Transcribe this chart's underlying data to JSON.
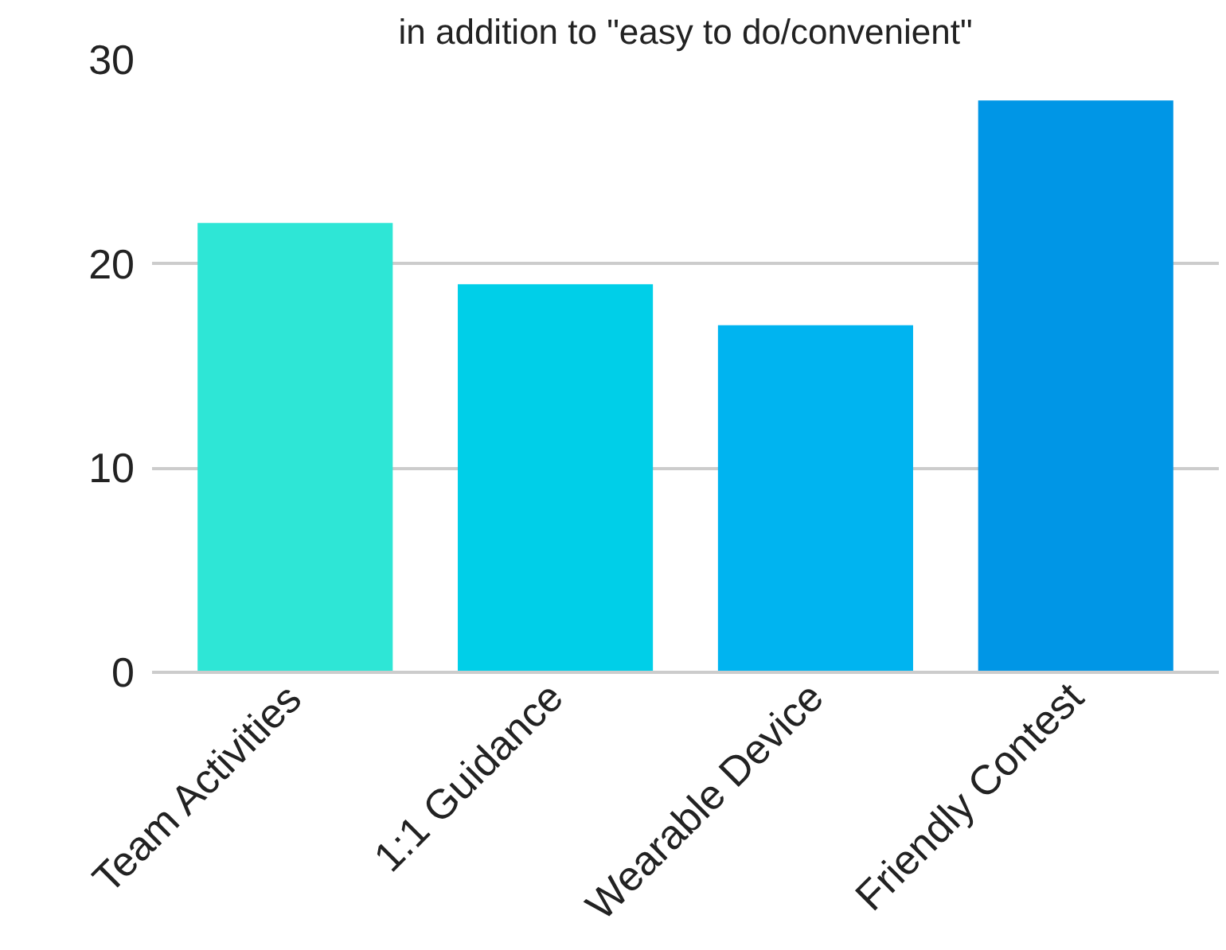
{
  "chart_data": {
    "type": "bar",
    "title": "in addition to \"easy to do/convenient\"",
    "categories": [
      "Team Activities",
      "1:1 Guidance",
      "Wearable Device",
      "Friendly Contest"
    ],
    "values": [
      22,
      19,
      17,
      28
    ],
    "colors": [
      "#2ee6d6",
      "#00cfe8",
      "#00b4f0",
      "#0096e6"
    ],
    "ylim": [
      0,
      30
    ],
    "yticks": [
      0,
      10,
      20,
      30
    ],
    "grid": "y"
  }
}
